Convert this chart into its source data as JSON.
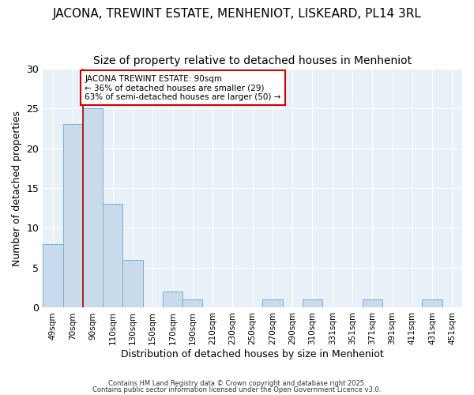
{
  "title": "JACONA, TREWINT ESTATE, MENHENIOT, LISKEARD, PL14 3RL",
  "subtitle": "Size of property relative to detached houses in Menheniot",
  "xlabel": "Distribution of detached houses by size in Menheniot",
  "ylabel": "Number of detached properties",
  "bar_labels": [
    "49sqm",
    "70sqm",
    "90sqm",
    "110sqm",
    "130sqm",
    "150sqm",
    "170sqm",
    "190sqm",
    "210sqm",
    "230sqm",
    "250sqm",
    "270sqm",
    "290sqm",
    "310sqm",
    "331sqm",
    "351sqm",
    "371sqm",
    "391sqm",
    "411sqm",
    "431sqm",
    "451sqm"
  ],
  "bar_values": [
    8,
    23,
    25,
    13,
    6,
    0,
    2,
    1,
    0,
    0,
    0,
    1,
    0,
    1,
    0,
    0,
    1,
    0,
    0,
    1,
    0
  ],
  "bar_color": "#c9daea",
  "bar_edge_color": "#7bafd4",
  "marker_index": 2,
  "marker_color": "#aa0000",
  "ylim": [
    0,
    30
  ],
  "yticks": [
    0,
    5,
    10,
    15,
    20,
    25,
    30
  ],
  "annotation_title": "JACONA TREWINT ESTATE: 90sqm",
  "annotation_line1": "← 36% of detached houses are smaller (29)",
  "annotation_line2": "63% of semi-detached houses are larger (50) →",
  "annotation_box_color": "#cc0000",
  "footer1": "Contains HM Land Registry data © Crown copyright and database right 2025.",
  "footer2": "Contains public sector information licensed under the Open Government Licence v3.0.",
  "bg_color": "#ffffff",
  "plot_bg_color": "#e8f0f8",
  "grid_color": "#ffffff",
  "title_fontsize": 11,
  "subtitle_fontsize": 10,
  "bar_width": 1.0
}
